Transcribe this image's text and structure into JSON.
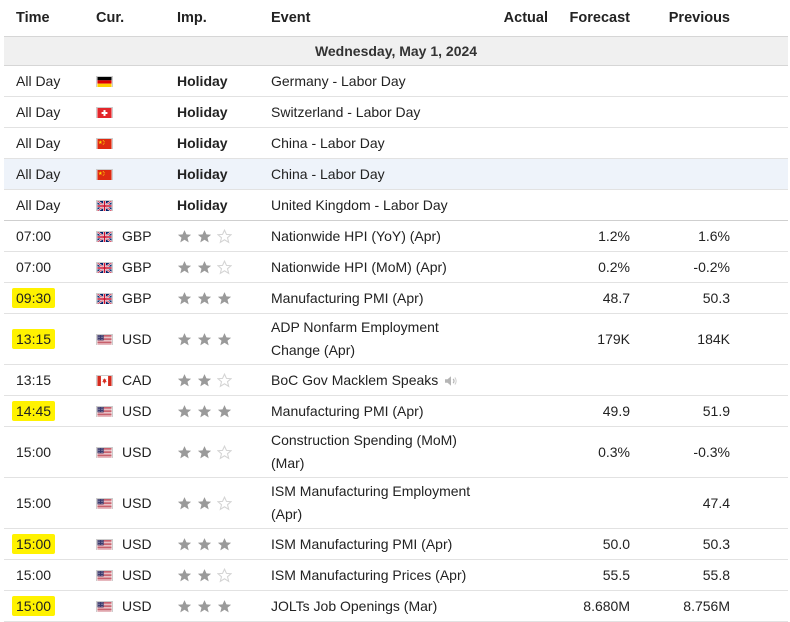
{
  "headers": {
    "time": "Time",
    "cur": "Cur.",
    "imp": "Imp.",
    "event": "Event",
    "actual": "Actual",
    "forecast": "Forecast",
    "previous": "Previous"
  },
  "date_label": "Wednesday, May 1, 2024",
  "holidays": [
    {
      "time": "All Day",
      "flag": "de",
      "imp": "Holiday",
      "event": "Germany - Labor Day"
    },
    {
      "time": "All Day",
      "flag": "ch",
      "imp": "Holiday",
      "event": "Switzerland - Labor Day"
    },
    {
      "time": "All Day",
      "flag": "cn",
      "imp": "Holiday",
      "event": "China - Labor Day"
    },
    {
      "time": "All Day",
      "flag": "cn",
      "imp": "Holiday",
      "event": "China - Labor Day"
    },
    {
      "time": "All Day",
      "flag": "gb",
      "imp": "Holiday",
      "event": "United Kingdom - Labor Day"
    }
  ],
  "events": [
    {
      "time": "07:00",
      "flag": "gb",
      "cur": "GBP",
      "stars": 2,
      "event": "Nationwide HPI (YoY) (Apr)",
      "actual": "",
      "forecast": "1.2%",
      "previous": "1.6%",
      "highlight": false
    },
    {
      "time": "07:00",
      "flag": "gb",
      "cur": "GBP",
      "stars": 2,
      "event": "Nationwide HPI (MoM) (Apr)",
      "actual": "",
      "forecast": "0.2%",
      "previous": "-0.2%",
      "highlight": false
    },
    {
      "time": "09:30",
      "flag": "gb",
      "cur": "GBP",
      "stars": 3,
      "event": "Manufacturing PMI (Apr)",
      "actual": "",
      "forecast": "48.7",
      "previous": "50.3",
      "highlight": true
    },
    {
      "time": "13:15",
      "flag": "us",
      "cur": "USD",
      "stars": 3,
      "event": "ADP Nonfarm Employment Change (Apr)",
      "actual": "",
      "forecast": "179K",
      "previous": "184K",
      "highlight": true,
      "tall": true
    },
    {
      "time": "13:15",
      "flag": "ca",
      "cur": "CAD",
      "stars": 2,
      "event": "BoC Gov Macklem Speaks",
      "actual": "",
      "forecast": "",
      "previous": "",
      "highlight": false,
      "speaker": "speaker-icon"
    },
    {
      "time": "14:45",
      "flag": "us",
      "cur": "USD",
      "stars": 3,
      "event": "Manufacturing PMI (Apr)",
      "actual": "",
      "forecast": "49.9",
      "previous": "51.9",
      "highlight": true
    },
    {
      "time": "15:00",
      "flag": "us",
      "cur": "USD",
      "stars": 2,
      "event": "Construction Spending (MoM) (Mar)",
      "actual": "",
      "forecast": "0.3%",
      "previous": "-0.3%",
      "highlight": false,
      "tall": true
    },
    {
      "time": "15:00",
      "flag": "us",
      "cur": "USD",
      "stars": 2,
      "event": "ISM Manufacturing Employment (Apr)",
      "actual": "",
      "forecast": "",
      "previous": "47.4",
      "highlight": false,
      "tall": true
    },
    {
      "time": "15:00",
      "flag": "us",
      "cur": "USD",
      "stars": 3,
      "event": "ISM Manufacturing PMI (Apr)",
      "actual": "",
      "forecast": "50.0",
      "previous": "50.3",
      "highlight": true
    },
    {
      "time": "15:00",
      "flag": "us",
      "cur": "USD",
      "stars": 2,
      "event": "ISM Manufacturing Prices (Apr)",
      "actual": "",
      "forecast": "55.5",
      "previous": "55.8",
      "highlight": false
    },
    {
      "time": "15:00",
      "flag": "us",
      "cur": "USD",
      "stars": 3,
      "event": "JOLTs Job Openings (Mar)",
      "actual": "",
      "forecast": "8.680M",
      "previous": "8.756M",
      "highlight": true
    }
  ],
  "colors": {
    "star_on": "#9a9a9a",
    "star_off": "#d4d4d4",
    "highlight": "#fff200",
    "day_bg": "#f0f0f0",
    "row_hover": "#eef3fa"
  }
}
